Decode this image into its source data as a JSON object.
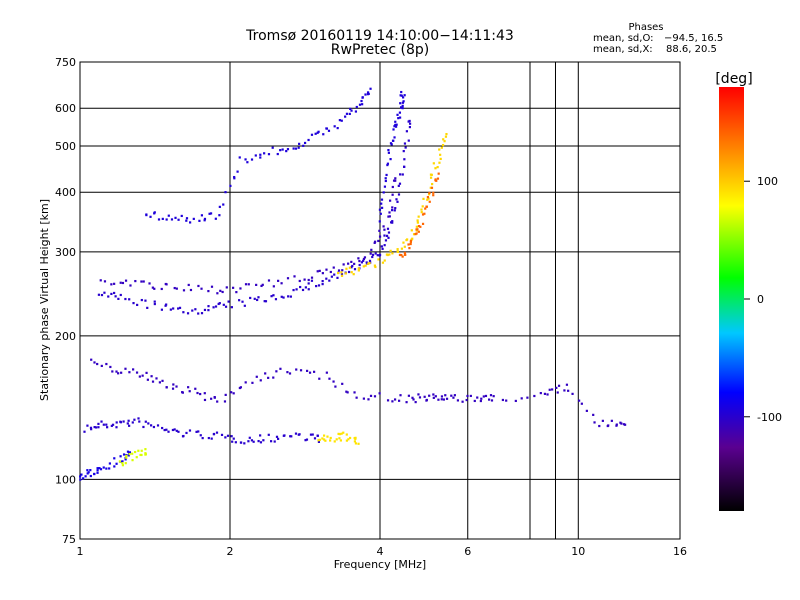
{
  "chart_data": {
    "type": "scatter",
    "title": "Tromsø 20160119 14:10:00−14:11:43",
    "subtitle": "RwPretec (8p)",
    "xlabel": "Frequency [MHz]",
    "ylabel": "Stationary phase Virtual Height [km]",
    "x_scale": "log",
    "y_scale": "log",
    "xlim": [
      1,
      16
    ],
    "ylim": [
      75,
      750
    ],
    "grid": true,
    "x_ticks_major": [
      1,
      2,
      4,
      6,
      10,
      16
    ],
    "x_ticks_minor": [
      8,
      9
    ],
    "y_ticks": [
      75,
      100,
      200,
      300,
      400,
      500,
      600,
      750
    ],
    "legend_header": "Phases",
    "stats": [
      {
        "label": "mean, sd,O:",
        "values": "−94.5, 16.5"
      },
      {
        "label": "mean, sd,X:",
        "values": "88.6, 20.5"
      }
    ],
    "colorbar": {
      "label": "[deg]",
      "range": [
        -180,
        180
      ],
      "ticks": [
        100,
        0,
        -100
      ],
      "colormap": "rainbow"
    },
    "traces": [
      {
        "desc": "E-layer trace",
        "phase": -100,
        "x": [
          1.03,
          1.1,
          1.2,
          1.3,
          1.45,
          1.6,
          1.8,
          2.0,
          2.2,
          2.4,
          2.7,
          3.0
        ],
        "y": [
          128,
          130,
          131,
          132,
          128,
          125,
          124,
          122,
          121,
          122,
          124,
          122
        ]
      },
      {
        "desc": "E-layer X",
        "phase": 90,
        "x": [
          3.0,
          3.2,
          3.4,
          3.6
        ],
        "y": [
          121,
          122,
          123,
          121
        ]
      },
      {
        "desc": "low trace",
        "phase": -90,
        "x": [
          1.0,
          1.05,
          1.1,
          1.2,
          1.25
        ],
        "y": [
          100,
          103,
          106,
          110,
          113
        ]
      },
      {
        "desc": "low trace X",
        "phase": 70,
        "x": [
          1.2,
          1.28,
          1.35
        ],
        "y": [
          108,
          112,
          114
        ]
      },
      {
        "desc": "F O-mode",
        "phase": -100,
        "x": [
          1.1,
          1.2,
          1.4,
          1.6,
          1.8,
          2.0,
          2.3,
          2.6,
          2.9,
          3.2,
          3.5,
          3.8,
          4.0,
          4.15,
          4.3,
          4.45,
          4.6
        ],
        "y": [
          245,
          240,
          232,
          225,
          228,
          232,
          238,
          245,
          255,
          265,
          275,
          285,
          300,
          330,
          380,
          460,
          560
        ]
      },
      {
        "desc": "F O-mode echo",
        "phase": -105,
        "x": [
          1.1,
          1.3,
          1.5,
          1.8,
          2.1,
          2.5,
          3.0,
          3.4,
          3.8,
          4.1,
          4.3
        ],
        "y": [
          262,
          258,
          252,
          250,
          252,
          258,
          268,
          280,
          300,
          340,
          420
        ]
      },
      {
        "desc": "F X-mode",
        "phase": 95,
        "x": [
          3.3,
          3.6,
          4.0,
          4.3,
          4.6,
          4.8,
          5.0,
          5.2,
          5.4
        ],
        "y": [
          270,
          275,
          285,
          300,
          320,
          350,
          400,
          460,
          520
        ]
      },
      {
        "desc": "F X-mode red",
        "phase": 140,
        "x": [
          4.4,
          4.6,
          4.8,
          5.0,
          5.2
        ],
        "y": [
          290,
          310,
          340,
          380,
          430
        ]
      },
      {
        "desc": "second hop",
        "phase": -95,
        "x": [
          1.35,
          1.5,
          1.7,
          1.9,
          2.1,
          2.4,
          2.7,
          3.0,
          3.3,
          3.6,
          3.8
        ],
        "y": [
          360,
          355,
          350,
          360,
          465,
          485,
          500,
          525,
          560,
          605,
          650
        ]
      },
      {
        "desc": "upper column",
        "phase": -95,
        "x": [
          4.0,
          4.1,
          4.2,
          4.3,
          4.4,
          4.45
        ],
        "y": [
          350,
          420,
          500,
          560,
          600,
          640
        ]
      },
      {
        "desc": "sporadic",
        "phase": -105,
        "x": [
          1.05,
          1.2,
          1.35,
          1.5,
          1.7,
          1.9,
          2.2,
          2.6,
          3.1,
          3.6,
          4.3,
          4.8,
          5.2,
          5.6,
          6.3,
          6.8,
          8.6,
          9.4,
          11.1,
          12.3
        ],
        "y": [
          175,
          170,
          165,
          158,
          152,
          147,
          160,
          170,
          165,
          150,
          148,
          148,
          148,
          148,
          148,
          148,
          150,
          157,
          130,
          132
        ]
      }
    ]
  }
}
